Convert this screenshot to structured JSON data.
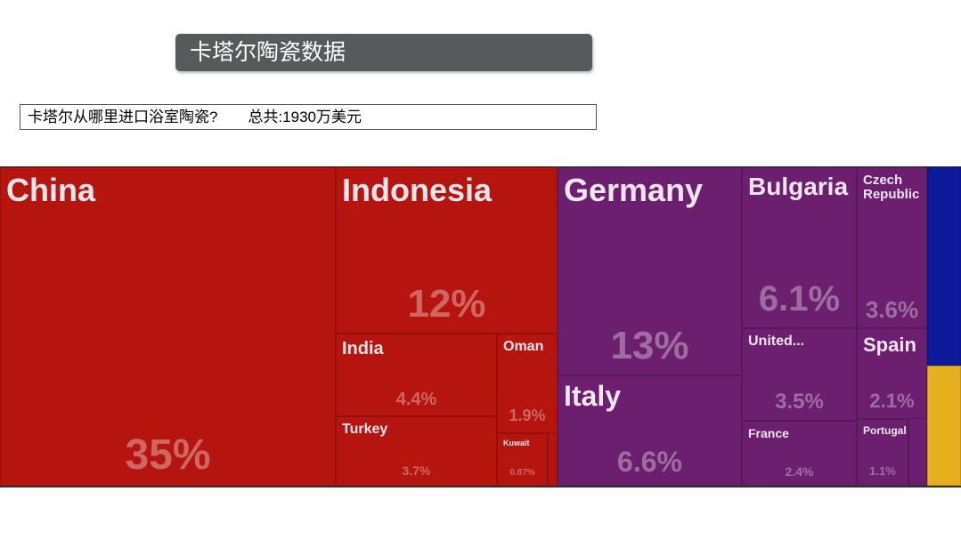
{
  "chart_data": {
    "type": "treemap",
    "title": "卡塔尔陶瓷数据",
    "subtitle": "卡塔尔从哪里进口浴室陶瓷?　　总共:1930万美元",
    "categories": [
      "China",
      "Indonesia",
      "India",
      "Oman",
      "Turkey",
      "Kuwait",
      "Germany",
      "Italy",
      "Bulgaria",
      "United...",
      "France",
      "Czech Republic",
      "Spain",
      "Portugal"
    ],
    "values": [
      35,
      12,
      4.4,
      1.9,
      3.7,
      0.87,
      13,
      6.6,
      6.1,
      3.5,
      2.4,
      3.6,
      2.1,
      1.1
    ],
    "value_labels": [
      "35%",
      "12%",
      "4.4%",
      "1.9%",
      "3.7%",
      "0.87%",
      "13%",
      "6.6%",
      "6.1%",
      "3.5%",
      "2.4%",
      "3.6%",
      "2.1%",
      "1.1%"
    ],
    "colors": [
      "#b5140f",
      "#b5140f",
      "#b5140f",
      "#b5140f",
      "#b5140f",
      "#b5140f",
      "#6b1f6e",
      "#6b1f6e",
      "#6b1f6e",
      "#6b1f6e",
      "#6b1f6e",
      "#6b1f6e",
      "#6b1f6e",
      "#6b1f6e"
    ]
  }
}
